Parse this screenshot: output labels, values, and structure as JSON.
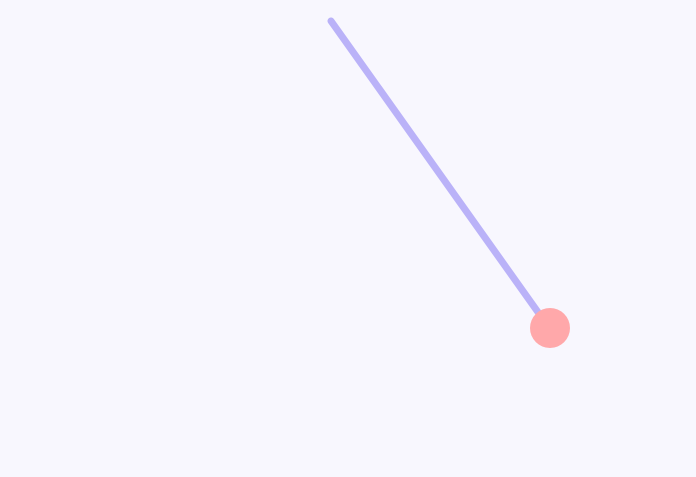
{
  "colors": {
    "background": "#F8F7FE",
    "rope": "#BAB2F8",
    "bob": "#FFA8AA"
  },
  "pendulum": {
    "rope_label": "",
    "bob_label": ""
  }
}
